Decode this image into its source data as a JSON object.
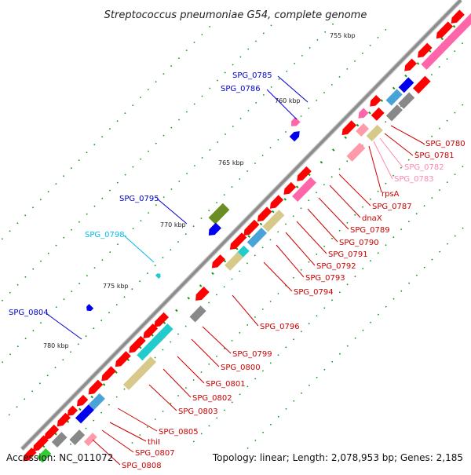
{
  "title": "Streptococcus pneumoniae G54, complete genome",
  "footer": {
    "accession": "Accession: NC_011072",
    "summary": "Topology: linear; Length: 2,078,953 bp; Genes: 2,185"
  },
  "colors": {
    "backbone": "#8c8c8c",
    "gene_red": "#ff0000",
    "pink": "#ff66aa",
    "light_pink": "#ff9aaa",
    "blue": "#0000ee",
    "sky": "#4aa3d6",
    "cyan": "#22cccc",
    "khaki": "#d6c98a",
    "olive": "#6b8e23",
    "gray": "#888888",
    "green": "#33cc33",
    "orange": "#ff8c00",
    "label_red": "#cc0000",
    "label_blue": "#0000cc",
    "label_light_pink": "#ff88aa",
    "label_cyan": "#00bbee"
  },
  "ticks": [
    "755 kbp",
    "760 kbp",
    "765 kbp",
    "770 kbp",
    "775 kbp",
    "780 kbp"
  ],
  "labels_left": [
    "SPG_0785",
    "SPG_0786",
    "SPG_0795",
    "SPG_0798",
    "SPG_0804"
  ],
  "labels_right": [
    "SPG_0780",
    "SPG_0781",
    "SPG_0782",
    "SPG_0783",
    "rpsA",
    "SPG_0787",
    "dnaX",
    "SPG_0789",
    "SPG_0790",
    "SPG_0791",
    "SPG_0792",
    "SPG_0793",
    "SPG_0794",
    "SPG_0796",
    "SPG_0799",
    "SPG_0800",
    "SPG_0801",
    "SPG_0802",
    "SPG_0803",
    "SPG_0805",
    "thiI",
    "SPG_0807",
    "SPG_0808"
  ]
}
